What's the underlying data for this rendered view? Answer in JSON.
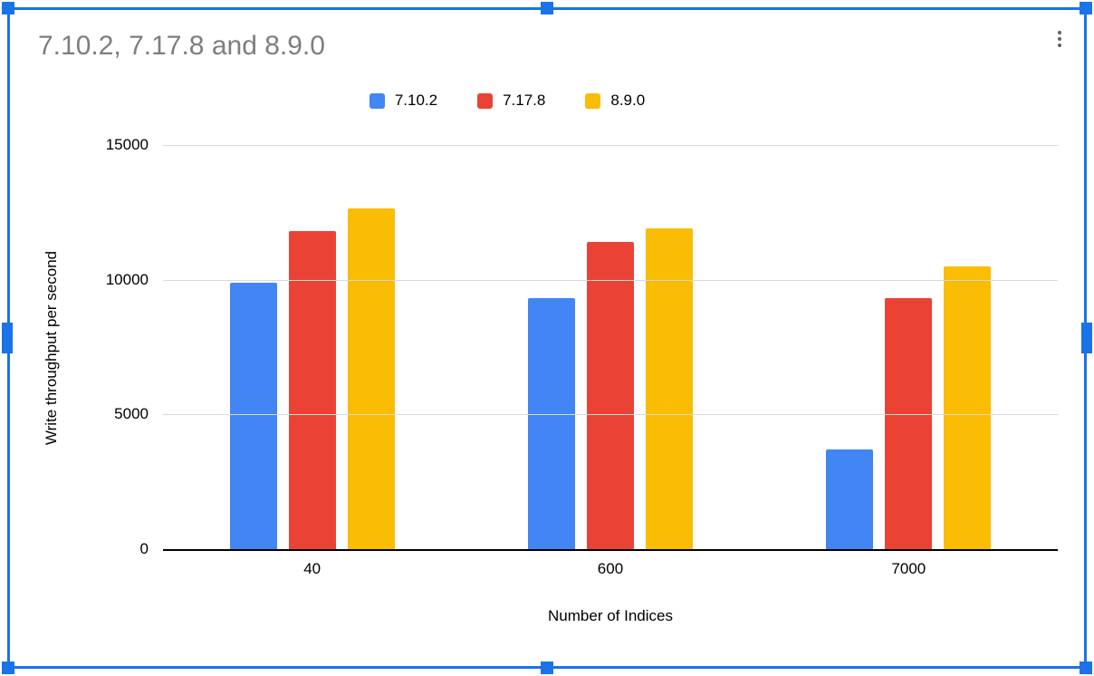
{
  "chart_data": {
    "type": "bar",
    "title": "7.10.2, 7.17.8 and 8.9.0",
    "categories": [
      "40",
      "600",
      "7000"
    ],
    "series": [
      {
        "name": "7.10.2",
        "color": "#4285F4",
        "values": [
          9900,
          9300,
          3700
        ]
      },
      {
        "name": "7.17.8",
        "color": "#EA4335",
        "values": [
          11800,
          11400,
          9300
        ]
      },
      {
        "name": "8.9.0",
        "color": "#FBBC04",
        "values": [
          12650,
          11900,
          10500
        ]
      }
    ],
    "xlabel": "Number of Indices",
    "ylabel": "Write throughput per second",
    "ylim": [
      0,
      15000
    ],
    "yticks": [
      0,
      5000,
      10000,
      15000
    ],
    "grid": true,
    "legend_position": "top"
  },
  "ui": {
    "menu_icon": "kebab-vertical-icon",
    "selection_color": "#1a73e8"
  }
}
